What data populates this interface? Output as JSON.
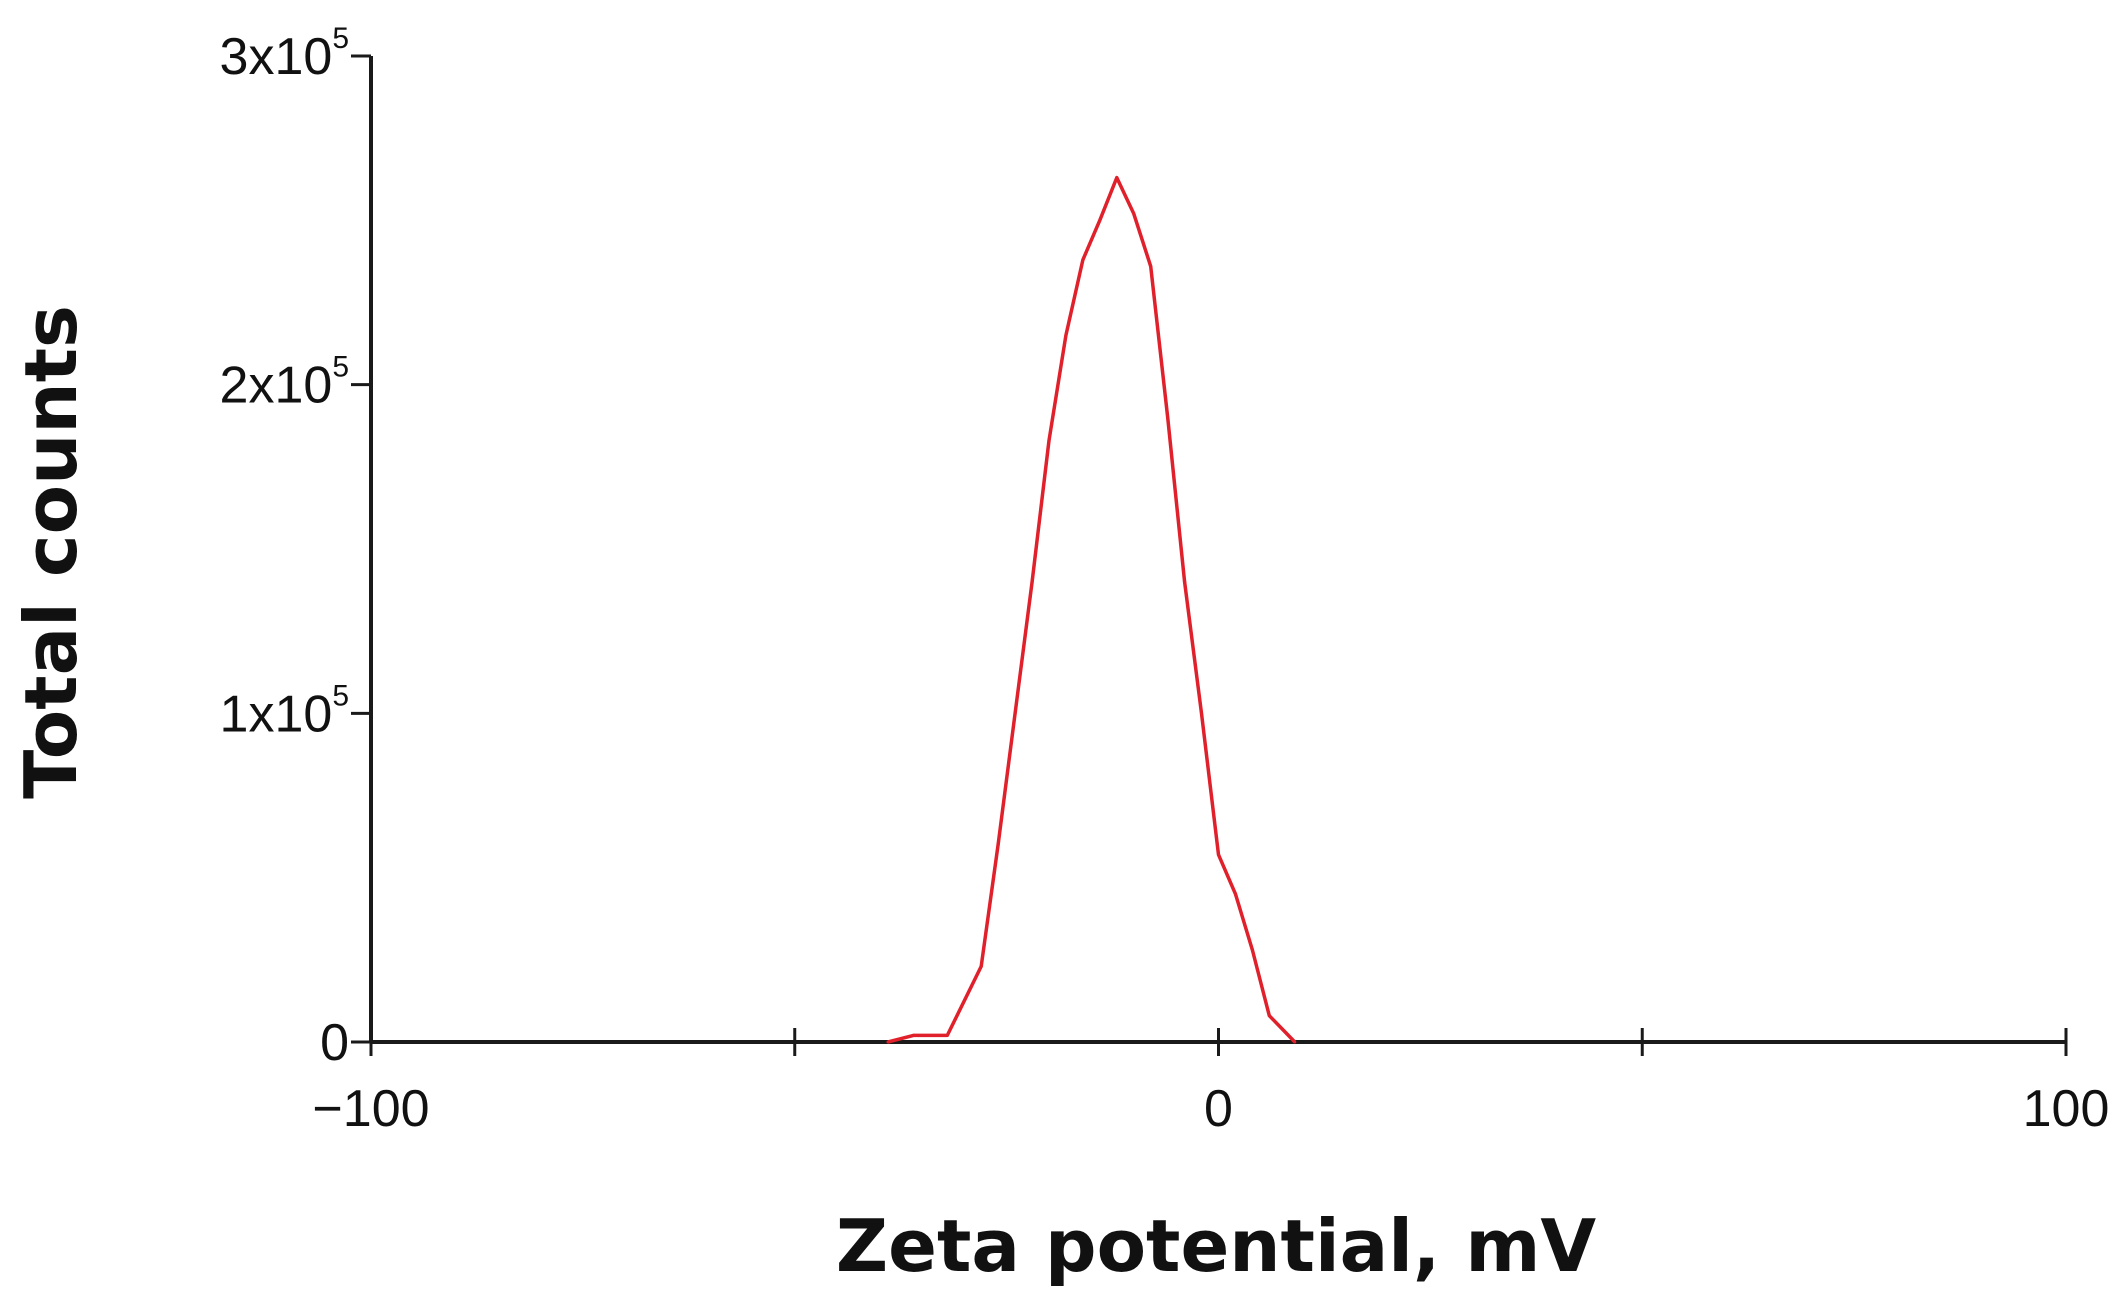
{
  "chart_data": {
    "type": "line",
    "title": "",
    "xlabel": "Zeta potential, mV",
    "ylabel": "Total counts",
    "xlim": [
      -100,
      100
    ],
    "ylim": [
      0,
      300000
    ],
    "grid": false,
    "x_ticks": [
      {
        "value": -100,
        "label": "−100"
      },
      {
        "value": -50,
        "label": ""
      },
      {
        "value": 0,
        "label": "0"
      },
      {
        "value": 50,
        "label": ""
      },
      {
        "value": 100,
        "label": "100"
      }
    ],
    "y_ticks": [
      {
        "value": 0,
        "base": "0",
        "exp": ""
      },
      {
        "value": 100000,
        "base": "1x10",
        "exp": "5"
      },
      {
        "value": 200000,
        "base": "2x10",
        "exp": "5"
      },
      {
        "value": 300000,
        "base": "3x10",
        "exp": "5"
      }
    ],
    "series": [
      {
        "color": "#e0202a",
        "x": [
          -39,
          -36,
          -32,
          -28,
          -26,
          -24,
          -22,
          -20,
          -18,
          -16,
          -14,
          -12,
          -10,
          -8,
          -6,
          -4,
          -2,
          0,
          2,
          4,
          6,
          9
        ],
        "y": [
          0,
          2000,
          2000,
          23000,
          60000,
          100000,
          140000,
          183000,
          215000,
          238000,
          250000,
          263000,
          252000,
          236000,
          190000,
          140000,
          100000,
          57000,
          45000,
          28000,
          8000,
          0
        ]
      }
    ]
  }
}
